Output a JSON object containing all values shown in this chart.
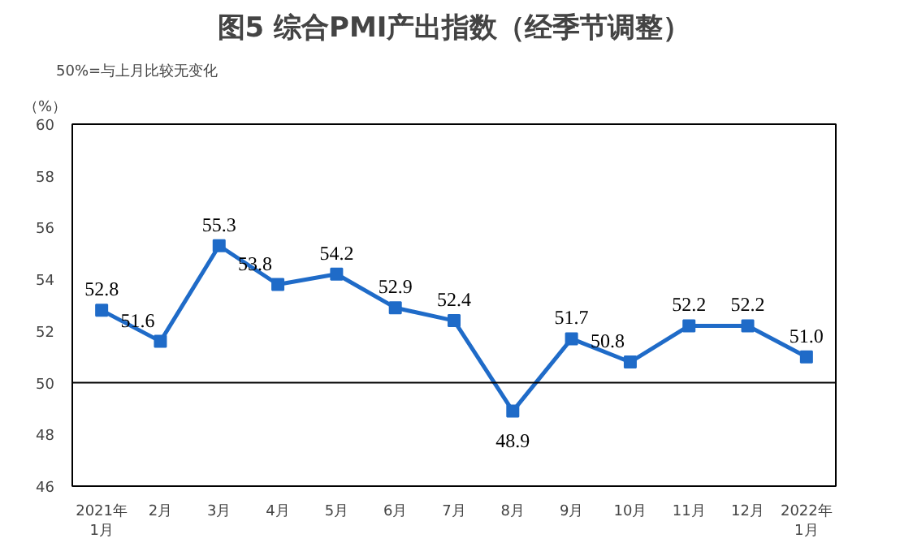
{
  "chart_data": {
    "type": "line",
    "title": "图5 综合PMI产出指数（经季节调整）",
    "ylabel": "（%）",
    "annotations": [
      "50%=与上月比较无变化"
    ],
    "categories": [
      "2021年\n1月",
      "2月",
      "3月",
      "4月",
      "5月",
      "6月",
      "7月",
      "8月",
      "9月",
      "10月",
      "11月",
      "12月",
      "2022年\n1月"
    ],
    "series": [
      {
        "color": "#1f6bc8",
        "values": [
          52.8,
          51.6,
          55.3,
          53.8,
          54.2,
          52.9,
          52.4,
          48.9,
          51.7,
          50.8,
          52.2,
          52.2,
          51.0
        ]
      }
    ],
    "ylim": [
      46,
      60
    ],
    "yticks": [
      46,
      48,
      50,
      52,
      54,
      56,
      58,
      60
    ],
    "ref_lines": [
      {
        "axis": "y",
        "value": 50,
        "color": "#000000"
      }
    ],
    "value_labels": [
      "52.8",
      "51.6",
      "55.3",
      "53.8",
      "54.2",
      "52.9",
      "52.4",
      "48.9",
      "51.7",
      "50.8",
      "52.2",
      "52.2",
      "51.0"
    ],
    "marker": "square",
    "grid": false
  }
}
